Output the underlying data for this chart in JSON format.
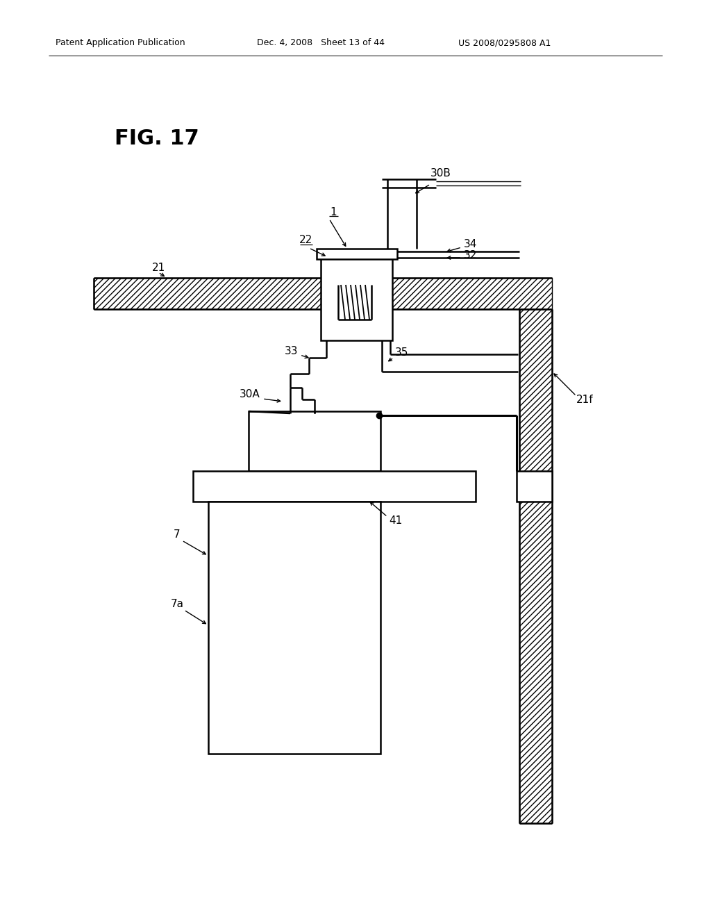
{
  "bg_color": "#ffffff",
  "header_left": "Patent Application Publication",
  "header_center": "Dec. 4, 2008   Sheet 13 of 44",
  "header_right": "US 2008/0295808 A1",
  "fig_label": "FIG. 17",
  "lw_thin": 1.0,
  "lw_med": 1.8,
  "lw_thick": 2.2,
  "label_fs": 11,
  "header_fs": 9,
  "fig_fs": 22
}
